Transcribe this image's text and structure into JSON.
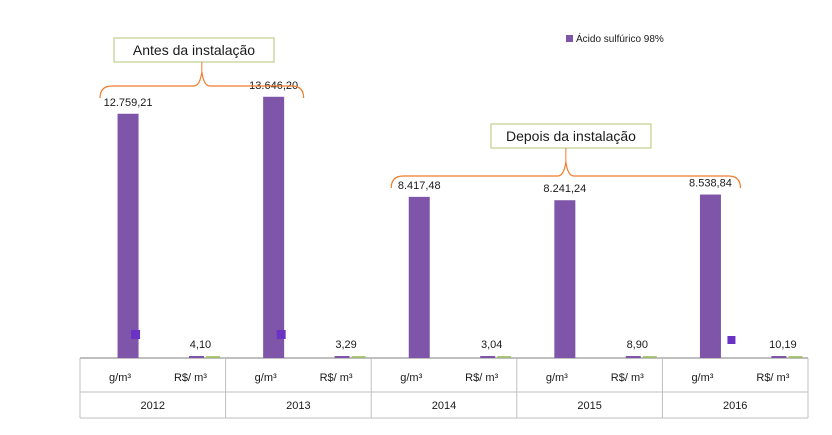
{
  "chart_data": {
    "type": "bar",
    "title": "",
    "xlabel": "",
    "ylabel": "",
    "ylim": [
      0,
      14000
    ],
    "legend": [
      "Ácido sulfúrico 98%"
    ],
    "colors": {
      "series": "#7e55a8",
      "bracket": "#f27c2c",
      "box_border": "#b6c47a",
      "axis": "#7f7f7f",
      "secondary_marker": "#9bbb59"
    },
    "groups": [
      {
        "year": "2012",
        "bars": [
          {
            "unit": "g/m³",
            "label": "12.759,21",
            "value": 12759.21
          },
          {
            "unit": "R$/ m³",
            "label": "4,10",
            "value": 4.1
          }
        ]
      },
      {
        "year": "2013",
        "bars": [
          {
            "unit": "g/m³",
            "label": "13.646,20",
            "value": 13646.2
          },
          {
            "unit": "R$/ m³",
            "label": "3,29",
            "value": 3.29
          }
        ]
      },
      {
        "year": "2014",
        "bars": [
          {
            "unit": "g/m³",
            "label": "8.417,48",
            "value": 8417.48
          },
          {
            "unit": "R$/ m³",
            "label": "3,04",
            "value": 3.04
          }
        ]
      },
      {
        "year": "2015",
        "bars": [
          {
            "unit": "g/m³",
            "label": "8.241,24",
            "value": 8241.24
          },
          {
            "unit": "R$/ m³",
            "label": "8,90",
            "value": 8.9
          }
        ]
      },
      {
        "year": "2016",
        "bars": [
          {
            "unit": "g/m³",
            "label": "8.538,84",
            "value": 8538.84
          },
          {
            "unit": "R$/ m³",
            "label": "10,19",
            "value": 10.19
          }
        ]
      }
    ],
    "annotations": [
      {
        "text": "Antes da instalação",
        "years": [
          "2012",
          "2013"
        ]
      },
      {
        "text": "Depois da instalação",
        "years": [
          "2014",
          "2015",
          "2016"
        ]
      }
    ]
  }
}
